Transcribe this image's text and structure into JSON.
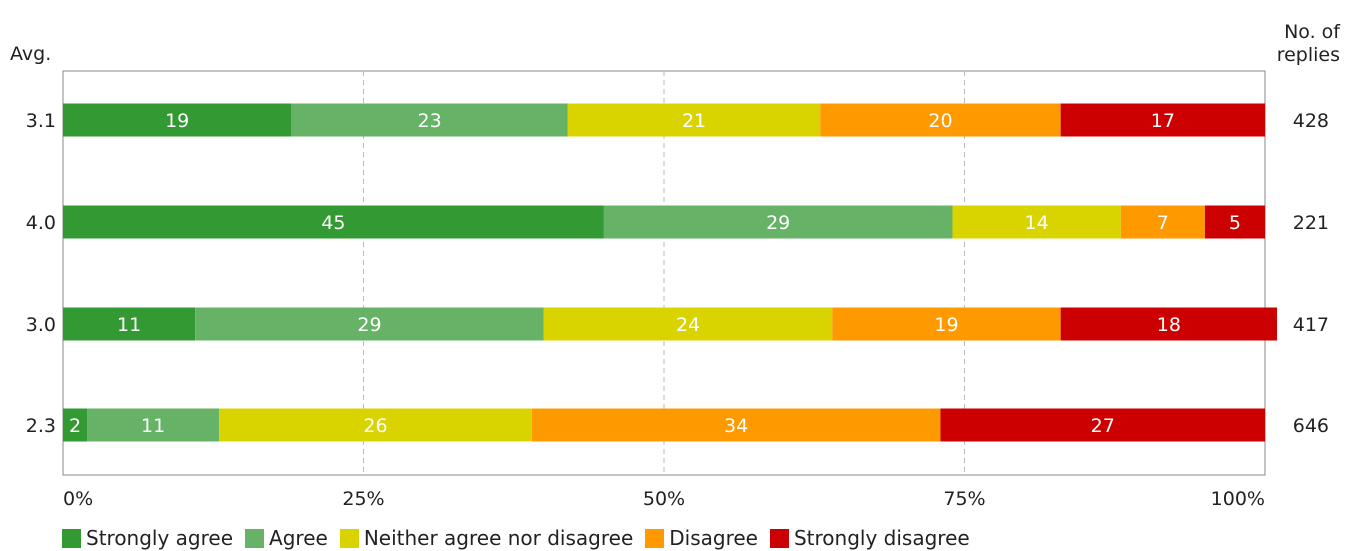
{
  "chart_data": {
    "type": "bar",
    "orientation": "horizontal-stacked-percent",
    "left_header": "Avg.",
    "right_header_line1": "No. of",
    "right_header_line2": "replies",
    "xlim": [
      0,
      100
    ],
    "x_ticks": [
      "0%",
      "25%",
      "50%",
      "75%",
      "100%"
    ],
    "x_tick_values": [
      0,
      25,
      50,
      75,
      100
    ],
    "grid": "vertical-dashed",
    "legend_position": "bottom",
    "categories": [
      "3.1",
      "4.0",
      "3.0",
      "2.3"
    ],
    "replies": [
      "428",
      "221",
      "417",
      "646"
    ],
    "series": [
      {
        "name": "Strongly agree",
        "color": "#339933",
        "values": [
          19,
          45,
          11,
          2
        ]
      },
      {
        "name": "Agree",
        "color": "#66b266",
        "values": [
          23,
          29,
          29,
          11
        ]
      },
      {
        "name": "Neither agree nor disagree",
        "color": "#d9d400",
        "values": [
          21,
          14,
          24,
          26
        ]
      },
      {
        "name": "Disagree",
        "color": "#ff9900",
        "values": [
          20,
          7,
          19,
          34
        ]
      },
      {
        "name": "Strongly disagree",
        "color": "#cc0000",
        "values": [
          17,
          5,
          18,
          27
        ]
      }
    ]
  }
}
